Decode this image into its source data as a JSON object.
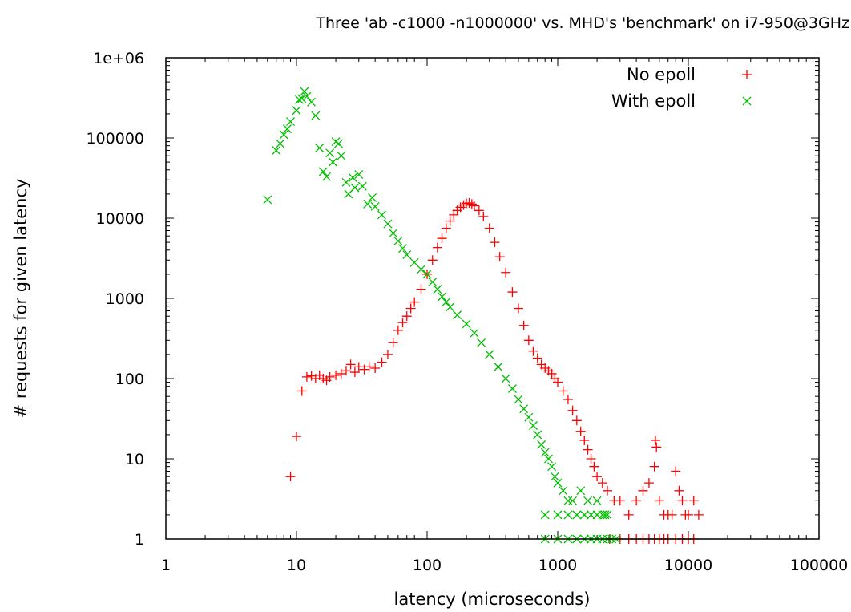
{
  "chart_data": {
    "type": "scatter",
    "title": "Three 'ab -c1000 -n1000000' vs. MHD's 'benchmark' on i7-950@3GHz",
    "xlabel": "latency (microseconds)",
    "ylabel": "# requests for given latency",
    "x_scale": "log",
    "y_scale": "log",
    "xlim": [
      1,
      100000
    ],
    "ylim": [
      1,
      1000000
    ],
    "x_ticks": [
      {
        "value": 1,
        "label": "1"
      },
      {
        "value": 10,
        "label": "10"
      },
      {
        "value": 100,
        "label": "100"
      },
      {
        "value": 1000,
        "label": "1000"
      },
      {
        "value": 10000,
        "label": "10000"
      },
      {
        "value": 100000,
        "label": "100000"
      }
    ],
    "y_ticks": [
      {
        "value": 1,
        "label": "1"
      },
      {
        "value": 10,
        "label": "10"
      },
      {
        "value": 100,
        "label": "100"
      },
      {
        "value": 1000,
        "label": "1000"
      },
      {
        "value": 10000,
        "label": "10000"
      },
      {
        "value": 100000,
        "label": "100000"
      },
      {
        "value": 1000000,
        "label": "1e+06"
      }
    ],
    "grid": false,
    "legend": "top-right",
    "series": [
      {
        "name": "No epoll",
        "marker": "+",
        "color": "#ff0000",
        "points": [
          [
            9,
            6
          ],
          [
            10,
            19
          ],
          [
            11,
            70
          ],
          [
            12,
            105
          ],
          [
            13,
            108
          ],
          [
            14,
            100
          ],
          [
            15,
            110
          ],
          [
            16,
            100
          ],
          [
            17,
            95
          ],
          [
            18,
            105
          ],
          [
            20,
            110
          ],
          [
            22,
            115
          ],
          [
            24,
            125
          ],
          [
            26,
            150
          ],
          [
            28,
            120
          ],
          [
            30,
            140
          ],
          [
            33,
            130
          ],
          [
            36,
            140
          ],
          [
            40,
            135
          ],
          [
            45,
            160
          ],
          [
            50,
            200
          ],
          [
            55,
            280
          ],
          [
            60,
            400
          ],
          [
            65,
            500
          ],
          [
            70,
            600
          ],
          [
            75,
            750
          ],
          [
            80,
            900
          ],
          [
            90,
            1300
          ],
          [
            100,
            2000
          ],
          [
            110,
            3000
          ],
          [
            120,
            4300
          ],
          [
            130,
            5600
          ],
          [
            140,
            7500
          ],
          [
            150,
            9200
          ],
          [
            160,
            11000
          ],
          [
            170,
            12500
          ],
          [
            180,
            13700
          ],
          [
            190,
            14600
          ],
          [
            200,
            15300
          ],
          [
            210,
            15500
          ],
          [
            220,
            15000
          ],
          [
            230,
            14300
          ],
          [
            250,
            12500
          ],
          [
            270,
            10500
          ],
          [
            300,
            7500
          ],
          [
            330,
            5000
          ],
          [
            360,
            3300
          ],
          [
            400,
            2100
          ],
          [
            450,
            1200
          ],
          [
            500,
            750
          ],
          [
            550,
            460
          ],
          [
            600,
            300
          ],
          [
            650,
            220
          ],
          [
            700,
            180
          ],
          [
            750,
            150
          ],
          [
            800,
            135
          ],
          [
            850,
            125
          ],
          [
            900,
            115
          ],
          [
            950,
            100
          ],
          [
            1000,
            90
          ],
          [
            1100,
            70
          ],
          [
            1200,
            55
          ],
          [
            1300,
            40
          ],
          [
            1400,
            30
          ],
          [
            1500,
            22
          ],
          [
            1600,
            17
          ],
          [
            1700,
            13
          ],
          [
            1800,
            10
          ],
          [
            1900,
            8
          ],
          [
            2000,
            6
          ],
          [
            2200,
            5
          ],
          [
            2400,
            4
          ],
          [
            2700,
            3
          ],
          [
            3000,
            3
          ],
          [
            3500,
            2
          ],
          [
            4000,
            3
          ],
          [
            4500,
            4
          ],
          [
            5000,
            5
          ],
          [
            5500,
            8
          ],
          [
            5600,
            17
          ],
          [
            5700,
            14
          ],
          [
            6000,
            3
          ],
          [
            6500,
            2
          ],
          [
            7000,
            2
          ],
          [
            7500,
            2
          ],
          [
            8000,
            7
          ],
          [
            8500,
            4
          ],
          [
            9000,
            3
          ],
          [
            9500,
            2
          ],
          [
            10000,
            2
          ],
          [
            11000,
            3
          ],
          [
            12000,
            2
          ],
          [
            2500,
            1
          ],
          [
            3000,
            1
          ],
          [
            3500,
            1
          ],
          [
            4000,
            1
          ],
          [
            4500,
            1
          ],
          [
            5000,
            1
          ],
          [
            5500,
            1
          ],
          [
            6000,
            1
          ],
          [
            6500,
            1
          ],
          [
            7000,
            1
          ],
          [
            8000,
            1
          ],
          [
            9000,
            1
          ],
          [
            10000,
            1
          ],
          [
            11000,
            1
          ]
        ]
      },
      {
        "name": "With epoll",
        "marker": "x",
        "color": "#00c000",
        "points": [
          [
            6,
            17000
          ],
          [
            7,
            70000
          ],
          [
            7.5,
            85000
          ],
          [
            8,
            110000
          ],
          [
            8.5,
            130000
          ],
          [
            9,
            160000
          ],
          [
            10,
            220000
          ],
          [
            10.5,
            300000
          ],
          [
            11,
            310000
          ],
          [
            11.5,
            380000
          ],
          [
            12,
            330000
          ],
          [
            13,
            280000
          ],
          [
            14,
            190000
          ],
          [
            15,
            75000
          ],
          [
            16,
            38000
          ],
          [
            17,
            33000
          ],
          [
            18,
            65000
          ],
          [
            19,
            50000
          ],
          [
            20,
            90000
          ],
          [
            21,
            85000
          ],
          [
            22,
            60000
          ],
          [
            24,
            28000
          ],
          [
            25,
            20000
          ],
          [
            27,
            32000
          ],
          [
            28,
            24000
          ],
          [
            30,
            35000
          ],
          [
            32,
            25000
          ],
          [
            35,
            15000
          ],
          [
            38,
            18000
          ],
          [
            40,
            14000
          ],
          [
            45,
            11000
          ],
          [
            50,
            8500
          ],
          [
            55,
            6500
          ],
          [
            60,
            5200
          ],
          [
            65,
            4200
          ],
          [
            70,
            3500
          ],
          [
            80,
            2800
          ],
          [
            90,
            2300
          ],
          [
            100,
            2000
          ],
          [
            110,
            1600
          ],
          [
            120,
            1300
          ],
          [
            130,
            1050
          ],
          [
            140,
            900
          ],
          [
            150,
            780
          ],
          [
            170,
            620
          ],
          [
            200,
            480
          ],
          [
            230,
            370
          ],
          [
            260,
            280
          ],
          [
            300,
            200
          ],
          [
            350,
            140
          ],
          [
            400,
            100
          ],
          [
            450,
            75
          ],
          [
            500,
            55
          ],
          [
            550,
            42
          ],
          [
            600,
            33
          ],
          [
            650,
            26
          ],
          [
            700,
            20
          ],
          [
            750,
            15
          ],
          [
            800,
            12
          ],
          [
            850,
            10
          ],
          [
            900,
            8
          ],
          [
            950,
            6
          ],
          [
            1000,
            5
          ],
          [
            1100,
            4
          ],
          [
            1200,
            3
          ],
          [
            1300,
            3
          ],
          [
            1500,
            4
          ],
          [
            1700,
            3
          ],
          [
            2000,
            3
          ],
          [
            2300,
            2
          ],
          [
            800,
            2
          ],
          [
            1000,
            2
          ],
          [
            1200,
            2
          ],
          [
            1400,
            2
          ],
          [
            1600,
            2
          ],
          [
            1800,
            2
          ],
          [
            2000,
            2
          ],
          [
            2200,
            2
          ],
          [
            2400,
            2
          ],
          [
            800,
            1
          ],
          [
            1000,
            1
          ],
          [
            1200,
            1
          ],
          [
            1400,
            1
          ],
          [
            1600,
            1
          ],
          [
            1800,
            1
          ],
          [
            2000,
            1
          ],
          [
            2200,
            1
          ],
          [
            2400,
            1
          ],
          [
            2600,
            1
          ],
          [
            2800,
            1
          ]
        ]
      }
    ]
  }
}
